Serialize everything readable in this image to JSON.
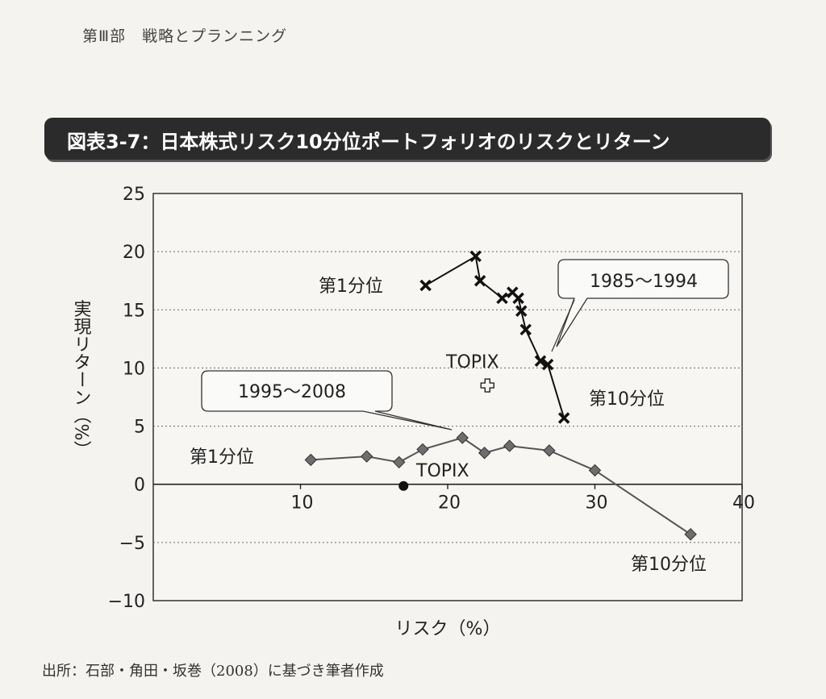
{
  "header": {
    "text": "第Ⅲ部　戦略とプランニング"
  },
  "title": "図表3-7：日本株式リスク10分位ポートフォリオのリスクとリターン",
  "footer": "出所：石部・角田・坂巻（2008）に基づき筆者作成",
  "chart_data": {
    "type": "line",
    "title": "図表3-7：日本株式リスク10分位ポートフォリオのリスクとリターン",
    "xlabel": "リスク（%）",
    "ylabel": "実現リターン（%）",
    "xlim": [
      0,
      40
    ],
    "ylim": [
      -10,
      25
    ],
    "xticks": [
      "10",
      "20",
      "30",
      "40"
    ],
    "yticks": [
      "25",
      "20",
      "15",
      "10",
      "5",
      "0",
      "−5",
      "−10"
    ],
    "grid": "horizontal dotted",
    "series": [
      {
        "name": "1985〜1994",
        "marker": "x",
        "color": "#111111",
        "x": [
          18.5,
          21.9,
          22.2,
          23.7,
          24.4,
          24.8,
          25.0,
          25.3,
          26.3,
          26.8,
          27.9
        ],
        "y": [
          17.1,
          19.6,
          17.5,
          16.0,
          16.5,
          16.0,
          14.9,
          13.3,
          10.6,
          10.3,
          5.7
        ]
      },
      {
        "name": "1995〜2008",
        "marker": "diamond",
        "color": "#555555",
        "x": [
          10.7,
          14.5,
          16.7,
          18.3,
          21.0,
          22.5,
          24.2,
          26.9,
          30.0,
          36.5
        ],
        "y": [
          2.1,
          2.4,
          1.9,
          3.0,
          4.0,
          2.7,
          3.3,
          2.9,
          1.2,
          -4.3
        ]
      }
    ],
    "points": [
      {
        "name": "TOPIX",
        "x": 22.7,
        "y": 8.5,
        "marker": "plus"
      },
      {
        "name": "TOPIX",
        "x": 17.0,
        "y": 0.0,
        "marker": "dot"
      }
    ],
    "annotations": [
      {
        "text": "第1分位",
        "kind": "label"
      },
      {
        "text": "第10分位",
        "kind": "label"
      },
      {
        "text": "1985〜1994",
        "kind": "callout"
      },
      {
        "text": "TOPIX",
        "kind": "label"
      },
      {
        "text": "1995〜2008",
        "kind": "callout"
      },
      {
        "text": "第1分位",
        "kind": "label"
      },
      {
        "text": "TOPIX",
        "kind": "label"
      },
      {
        "text": "第10分位",
        "kind": "label"
      }
    ]
  }
}
